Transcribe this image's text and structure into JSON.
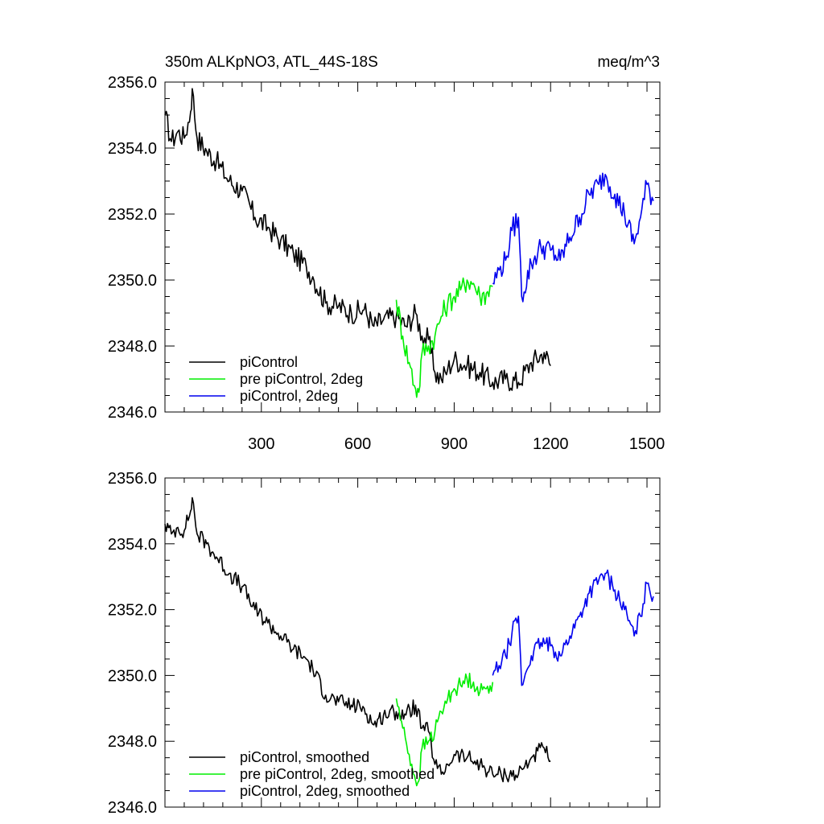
{
  "chart_data": [
    {
      "type": "line",
      "title": "350m ALKpNO3, ATL_44S-18S",
      "units": "meq/m^3",
      "xlim": [
        0,
        1540
      ],
      "ylim": [
        2346,
        2356
      ],
      "xticks": [
        300,
        600,
        900,
        1200,
        1500
      ],
      "xtick_labels": [
        "300",
        "600",
        "900",
        "1200",
        "1500"
      ],
      "yticks": [
        2346,
        2348,
        2350,
        2352,
        2354,
        2356
      ],
      "ytick_labels": [
        "2346.0",
        "2348.0",
        "2350.0",
        "2352.0",
        "2354.0",
        "2356.0"
      ],
      "grid": false,
      "legend_position": "bottom-left",
      "series": [
        {
          "name": "piControl",
          "color": "#000000",
          "x": [
            0,
            20,
            40,
            60,
            80,
            85,
            100,
            130,
            160,
            200,
            240,
            280,
            320,
            360,
            400,
            440,
            460,
            500,
            540,
            580,
            620,
            650,
            680,
            720,
            750,
            780,
            800,
            820,
            840,
            860,
            880,
            900,
            940,
            980,
            1020,
            1060,
            1100,
            1140,
            1180,
            1200
          ],
          "values": [
            2355.0,
            2354.2,
            2354.5,
            2354.3,
            2355.1,
            2355.8,
            2354.3,
            2353.9,
            2353.6,
            2353.0,
            2352.7,
            2351.9,
            2351.6,
            2351.2,
            2350.8,
            2350.4,
            2350.1,
            2349.3,
            2349.2,
            2349.0,
            2349.1,
            2348.6,
            2348.8,
            2348.9,
            2348.6,
            2349.0,
            2348.3,
            2348.2,
            2347.2,
            2347.0,
            2347.3,
            2347.6,
            2347.4,
            2347.2,
            2346.9,
            2347.0,
            2346.9,
            2347.5,
            2347.8,
            2347.4
          ]
        },
        {
          "name": "pre piControl, 2deg",
          "color": "#00ee00",
          "x": [
            720,
            740,
            760,
            780,
            790,
            800,
            820,
            840,
            860,
            880,
            900,
            920,
            940,
            960,
            980,
            1000,
            1020
          ],
          "values": [
            2349.4,
            2348.3,
            2347.5,
            2346.7,
            2346.6,
            2347.8,
            2348.0,
            2348.3,
            2348.9,
            2349.3,
            2349.5,
            2349.7,
            2350.0,
            2349.9,
            2349.5,
            2349.6,
            2349.8
          ]
        },
        {
          "name": "piControl, 2deg",
          "color": "#0000ee",
          "x": [
            1020,
            1040,
            1060,
            1080,
            1100,
            1110,
            1140,
            1170,
            1200,
            1230,
            1260,
            1290,
            1320,
            1350,
            1370,
            1400,
            1430,
            1460,
            1480,
            1500,
            1520
          ],
          "values": [
            2349.9,
            2350.3,
            2350.6,
            2351.5,
            2351.9,
            2349.5,
            2350.5,
            2351.0,
            2350.9,
            2350.6,
            2351.3,
            2351.9,
            2352.6,
            2352.9,
            2353.2,
            2352.6,
            2352.0,
            2351.1,
            2351.9,
            2352.9,
            2352.4
          ]
        }
      ]
    },
    {
      "type": "line",
      "xlim": [
        0,
        1540
      ],
      "ylim": [
        2346,
        2356
      ],
      "xticks": [
        300,
        600,
        900,
        1200,
        1500
      ],
      "yticks": [
        2346,
        2348,
        2350,
        2352,
        2354,
        2356
      ],
      "ytick_labels": [
        "2346.0",
        "2348.0",
        "2350.0",
        "2352.0",
        "2354.0",
        "2356.0"
      ],
      "grid": false,
      "legend_position": "bottom-left",
      "series": [
        {
          "name": "piControl, smoothed",
          "color": "#000000",
          "x": [
            0,
            20,
            40,
            60,
            80,
            85,
            100,
            130,
            160,
            200,
            240,
            280,
            320,
            360,
            400,
            440,
            460,
            500,
            540,
            580,
            620,
            650,
            680,
            720,
            750,
            780,
            800,
            820,
            840,
            860,
            880,
            900,
            940,
            980,
            1020,
            1060,
            1100,
            1140,
            1180,
            1200
          ],
          "values": [
            2354.6,
            2354.3,
            2354.5,
            2354.4,
            2355.0,
            2355.4,
            2354.3,
            2354.0,
            2353.6,
            2353.1,
            2352.7,
            2352.0,
            2351.6,
            2351.2,
            2350.8,
            2350.5,
            2350.2,
            2349.4,
            2349.2,
            2349.1,
            2349.0,
            2348.5,
            2348.8,
            2348.9,
            2348.8,
            2349.1,
            2348.4,
            2348.3,
            2347.3,
            2347.0,
            2347.3,
            2347.6,
            2347.5,
            2347.3,
            2347.0,
            2347.0,
            2347.0,
            2347.5,
            2347.8,
            2347.4
          ]
        },
        {
          "name": "pre piControl, 2deg, smoothed",
          "color": "#00ee00",
          "x": [
            720,
            740,
            760,
            780,
            790,
            800,
            820,
            840,
            860,
            880,
            900,
            920,
            940,
            960,
            980,
            1000,
            1020
          ],
          "values": [
            2349.3,
            2348.4,
            2347.6,
            2346.8,
            2346.8,
            2347.8,
            2348.0,
            2348.3,
            2348.9,
            2349.3,
            2349.6,
            2349.7,
            2349.9,
            2349.8,
            2349.5,
            2349.6,
            2349.8
          ]
        },
        {
          "name": "piControl, 2deg, smoothed",
          "color": "#0000ee",
          "x": [
            1020,
            1040,
            1060,
            1080,
            1100,
            1110,
            1140,
            1170,
            1200,
            1230,
            1260,
            1290,
            1320,
            1350,
            1370,
            1400,
            1430,
            1460,
            1480,
            1500,
            1520
          ],
          "values": [
            2350.0,
            2350.3,
            2350.6,
            2351.3,
            2351.8,
            2349.7,
            2350.6,
            2351.0,
            2350.9,
            2350.6,
            2351.2,
            2351.8,
            2352.5,
            2352.9,
            2353.1,
            2352.6,
            2352.0,
            2351.2,
            2351.8,
            2352.8,
            2352.4
          ]
        }
      ]
    }
  ]
}
